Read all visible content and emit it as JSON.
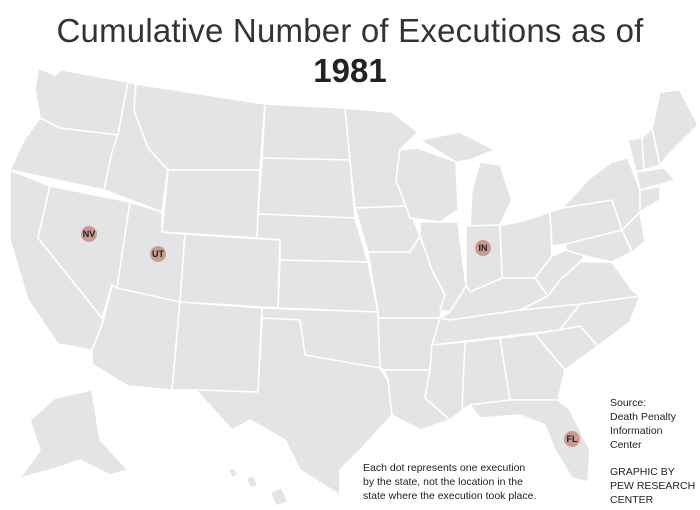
{
  "header": {
    "title": "Cumulative Number of Executions as of",
    "year": "1981"
  },
  "map": {
    "land_color": "#e4e4e6",
    "border_color": "#ffffff",
    "dot_color": "#c99a94",
    "states_with_executions": [
      {
        "abbr": "NV",
        "executions": 1
      },
      {
        "abbr": "UT",
        "executions": 1
      },
      {
        "abbr": "IN",
        "executions": 1
      },
      {
        "abbr": "FL",
        "executions": 1
      }
    ]
  },
  "source": {
    "lines": [
      "Source:",
      "Death Penalty",
      "Information",
      "Center"
    ]
  },
  "credit": {
    "lines": [
      "GRAPHIC BY",
      "PEW RESEARCH",
      "CENTER"
    ]
  },
  "note": {
    "lines": [
      "Each dot represents one execution",
      "by the state, not the location in the",
      "state where the execution took place."
    ]
  }
}
